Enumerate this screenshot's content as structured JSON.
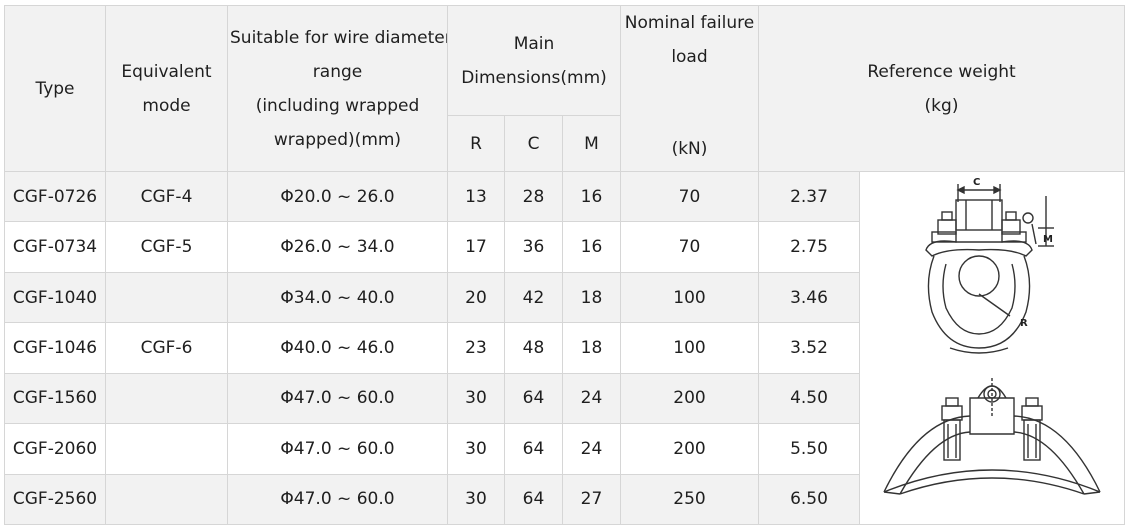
{
  "header": {
    "type": "Type",
    "equivalent_1": "Equivalent",
    "equivalent_2": "mode",
    "suitable_1": "Suitable for wire diameter",
    "suitable_2": "range",
    "suitable_3": "(including wrapped",
    "suitable_4": "wrapped)(mm)",
    "main_1": "Main",
    "main_2": "Dimensions(mm)",
    "r": "R",
    "c": "C",
    "m": "M",
    "load_1": "Nominal failure",
    "load_2": "load",
    "load_3": "(kN)",
    "weight_1": "Reference weight",
    "weight_2": "(kg)"
  },
  "rows": [
    {
      "type": "CGF-0726",
      "mode": "CGF-4",
      "range": "Φ20.0 ~ 26.0",
      "r": "13",
      "c": "28",
      "m": "16",
      "load": "70",
      "weight": "2.37"
    },
    {
      "type": "CGF-0734",
      "mode": "CGF-5",
      "range": "Φ26.0 ~ 34.0",
      "r": "17",
      "c": "36",
      "m": "16",
      "load": "70",
      "weight": "2.75"
    },
    {
      "type": "CGF-1040",
      "mode": "",
      "range": "Φ34.0 ~ 40.0",
      "r": "20",
      "c": "42",
      "m": "18",
      "load": "100",
      "weight": "3.46"
    },
    {
      "type": "CGF-1046",
      "mode": "CGF-6",
      "range": "Φ40.0 ~ 46.0",
      "r": "23",
      "c": "48",
      "m": "18",
      "load": "100",
      "weight": "3.52"
    },
    {
      "type": "CGF-1560",
      "mode": "",
      "range": "Φ47.0 ~ 60.0",
      "r": "30",
      "c": "64",
      "m": "24",
      "load": "200",
      "weight": "4.50"
    },
    {
      "type": "CGF-2060",
      "mode": "",
      "range": "Φ47.0 ~ 60.0",
      "r": "30",
      "c": "64",
      "m": "24",
      "load": "200",
      "weight": "5.50"
    },
    {
      "type": "CGF-2560",
      "mode": "",
      "range": "Φ47.0 ~ 60.0",
      "r": "30",
      "c": "64",
      "m": "27",
      "load": "250",
      "weight": "6.50"
    }
  ],
  "drawing_labels": {
    "c": "C",
    "m": "M",
    "r": "R"
  },
  "icons": {
    "drawing_front": "suspension-clamp-front-drawing-icon",
    "drawing_side": "suspension-clamp-side-drawing-icon"
  }
}
